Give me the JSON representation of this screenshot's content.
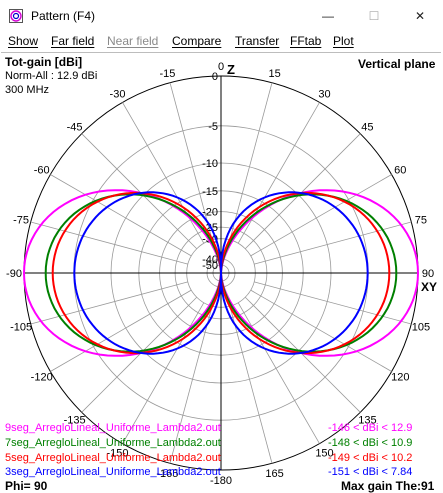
{
  "window": {
    "title": "Pattern   (F4)",
    "minimize_glyph": "—",
    "maximize_glyph": "☐",
    "close_glyph": "✕"
  },
  "menu": {
    "items": [
      {
        "label": "Show",
        "enabled": true
      },
      {
        "label": "Far field",
        "enabled": true
      },
      {
        "label": "Near field",
        "enabled": false
      },
      {
        "label": "Compare",
        "enabled": true
      },
      {
        "label": "Transfer",
        "enabled": true
      },
      {
        "label": "FFtab",
        "enabled": true
      },
      {
        "label": "Plot",
        "enabled": true
      }
    ]
  },
  "plot": {
    "top_left_title": "Tot-gain [dBi]",
    "norm_text": "Norm-All : 12.9 dBi",
    "freq_text": "300 MHz",
    "top_right_title": "Vertical plane",
    "bottom_left": "Phi= 90",
    "bottom_right": "Max gain The:91",
    "z_axis_label": "Z",
    "xy_axis_label": "XY",
    "angle_labels": {
      "top": "0",
      "t15": "15",
      "t30": "30",
      "t45": "45",
      "t60": "60",
      "t75": "75",
      "right": "90",
      "r105": "105",
      "r120": "120",
      "r135": "135",
      "r150": "150",
      "r165": "165",
      "bottom": "-180",
      "l15": "-15",
      "l30": "-30",
      "l45": "-45",
      "l60": "-60",
      "l75": "-75",
      "left": "-90",
      "l105": "-105",
      "l120": "-120",
      "l135": "-135",
      "l150": "-150",
      "l165": "-165"
    },
    "db_labels": [
      "0",
      "-5",
      "-10",
      "-15",
      "-20",
      "-25",
      "-30",
      "-40",
      "-50"
    ],
    "colors": {
      "grid": "#9a9a9a",
      "axis": "#000000"
    }
  },
  "chart_data": {
    "type": "polar",
    "unit": "dBi",
    "normalization_dbi": 12.9,
    "series": [
      {
        "name": "9seg_ArregloLineal_Uniforme_Lambda2.out",
        "range_text": "-146 < dBi < 12.9",
        "color": "#ff00ff",
        "max_dbi": 12.9
      },
      {
        "name": "7seg_ArregloLineal_Uniforme_Lambda2.out",
        "range_text": "-148 < dBi < 10.9",
        "color": "#008000",
        "max_dbi": 10.9
      },
      {
        "name": "5seg_ArregloLineal_Uniforme_Lambda2.out",
        "range_text": "-149 < dBi < 10.2",
        "color": "#ff0000",
        "max_dbi": 10.2
      },
      {
        "name": "3seg_ArregloLineal_Uniforme_Lambda2.out",
        "range_text": "-151 < dBi < 7.84",
        "color": "#0000ff",
        "max_dbi": 7.84
      }
    ]
  }
}
